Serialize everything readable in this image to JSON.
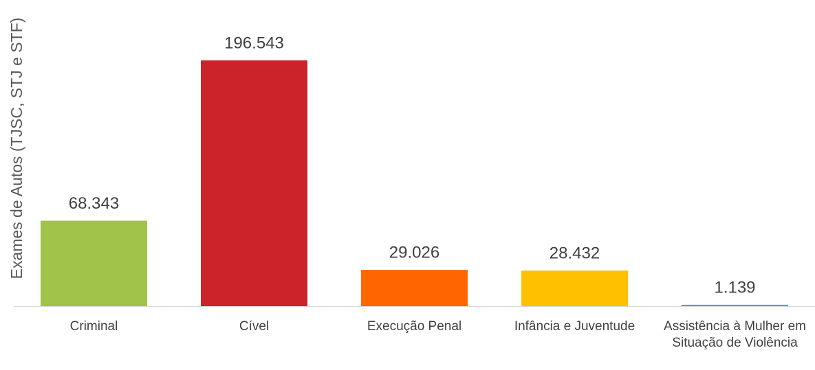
{
  "chart_data": {
    "type": "bar",
    "y_label": "Exames de Autos (TJSC, STJ e STF)",
    "categories": [
      "Criminal",
      "Cível",
      "Execução Penal",
      "Infância e Juventude",
      "Assistência à Mulher em Situação de Violência"
    ],
    "values": [
      68343,
      196543,
      29026,
      28432,
      1139
    ],
    "value_labels": [
      "68.343",
      "196.543",
      "29.026",
      "28.432",
      "1.139"
    ],
    "colors": [
      "#a2c34a",
      "#cc2229",
      "#ff6600",
      "#ffc000",
      "#5b9bd5"
    ]
  }
}
